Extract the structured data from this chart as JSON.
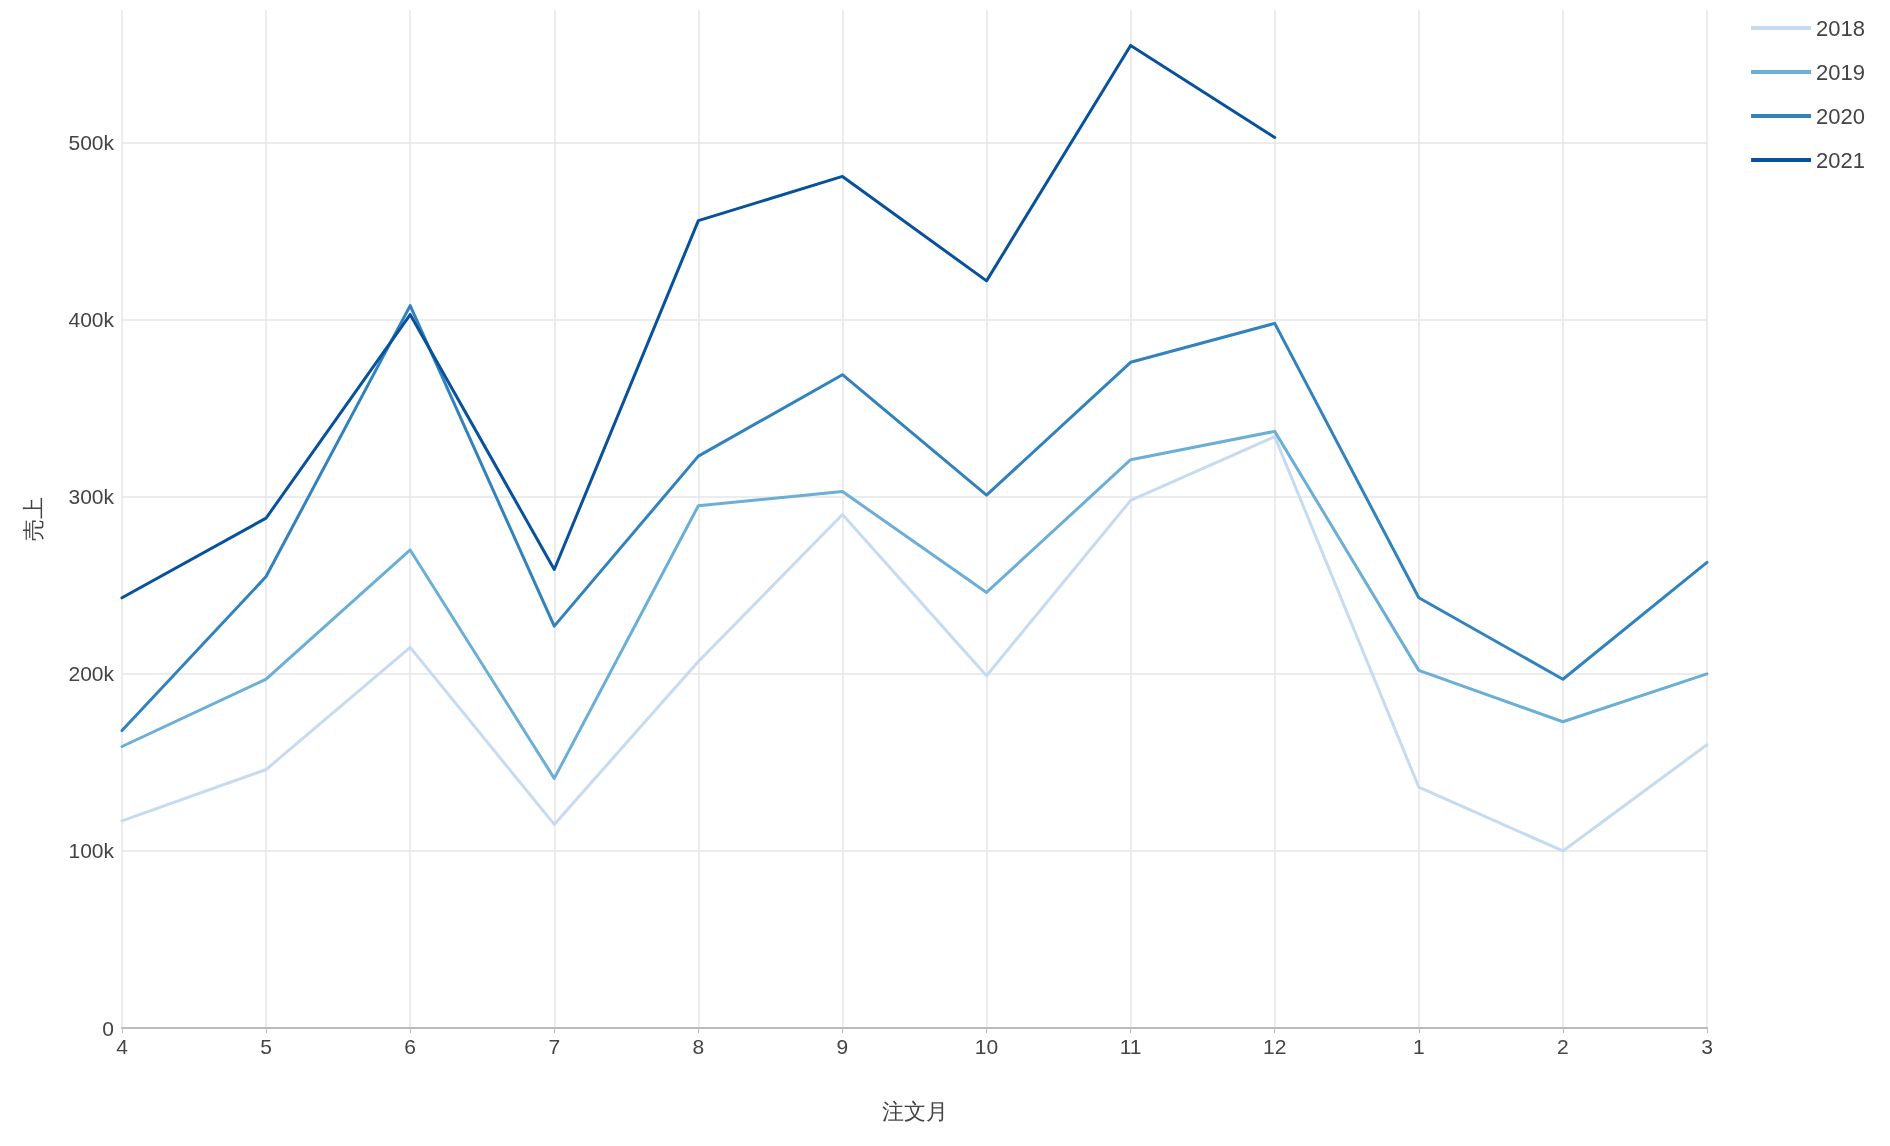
{
  "chart_data": {
    "type": "line",
    "xlabel": "注文月",
    "ylabel": "売上",
    "categories": [
      "4",
      "5",
      "6",
      "7",
      "8",
      "9",
      "10",
      "11",
      "12",
      "1",
      "2",
      "3"
    ],
    "series": [
      {
        "name": "2018",
        "color": "#c6dbef",
        "values": [
          117000,
          146000,
          215000,
          115000,
          207000,
          290000,
          199000,
          298000,
          334000,
          136000,
          100000,
          160000
        ]
      },
      {
        "name": "2019",
        "color": "#6baed6",
        "values": [
          159000,
          197000,
          270000,
          141000,
          295000,
          303000,
          246000,
          321000,
          337000,
          202000,
          173000,
          200000
        ]
      },
      {
        "name": "2020",
        "color": "#3182bd",
        "values": [
          168000,
          255000,
          408000,
          227000,
          323000,
          369000,
          301000,
          376000,
          398000,
          243000,
          197000,
          263000
        ]
      },
      {
        "name": "2021",
        "color": "#08519c",
        "values": [
          243000,
          288000,
          403000,
          259000,
          456000,
          481000,
          422000,
          555000,
          503000,
          null,
          null,
          null
        ]
      }
    ],
    "ylim": [
      0,
      575000
    ],
    "yticks": [
      {
        "value": 0,
        "label": "0"
      },
      {
        "value": 100000,
        "label": "100k"
      },
      {
        "value": 200000,
        "label": "200k"
      },
      {
        "value": 300000,
        "label": "300k"
      },
      {
        "value": 400000,
        "label": "400k"
      },
      {
        "value": 500000,
        "label": "500k"
      }
    ],
    "grid": true,
    "legend": "top right",
    "marker": "none",
    "line_style": "solid"
  }
}
